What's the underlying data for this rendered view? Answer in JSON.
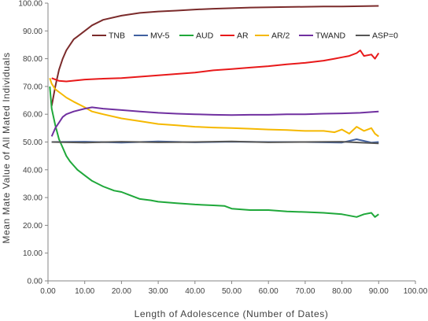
{
  "chart_data": {
    "type": "line",
    "title": "",
    "xlabel": "Length of Adolescence (Number of Dates)",
    "ylabel": "Mean Mate Value of All Mated Individuals",
    "xlim": [
      0,
      100
    ],
    "ylim": [
      0,
      100
    ],
    "x_ticks": [
      "0.00",
      "10.00",
      "20.00",
      "30.00",
      "40.00",
      "50.00",
      "60.00",
      "70.00",
      "80.00",
      "90.00",
      "100.00"
    ],
    "y_ticks": [
      "0.00",
      "10.00",
      "20.00",
      "30.00",
      "40.00",
      "50.00",
      "60.00",
      "70.00",
      "80.00",
      "90.00",
      "100.00"
    ],
    "grid": false,
    "legend": "top",
    "series": [
      {
        "name": "TNB",
        "color": "#7b2b2b",
        "points": [
          [
            1,
            63
          ],
          [
            2,
            70
          ],
          [
            3,
            76
          ],
          [
            4,
            80
          ],
          [
            5,
            83
          ],
          [
            6,
            85
          ],
          [
            7,
            87
          ],
          [
            8,
            88
          ],
          [
            10,
            90
          ],
          [
            12,
            92
          ],
          [
            15,
            94
          ],
          [
            20,
            95.5
          ],
          [
            25,
            96.5
          ],
          [
            30,
            97
          ],
          [
            35,
            97.3
          ],
          [
            40,
            97.7
          ],
          [
            45,
            98
          ],
          [
            50,
            98.2
          ],
          [
            55,
            98.4
          ],
          [
            60,
            98.5
          ],
          [
            65,
            98.6
          ],
          [
            70,
            98.7
          ],
          [
            75,
            98.8
          ],
          [
            80,
            98.8
          ],
          [
            85,
            98.9
          ],
          [
            90,
            99
          ]
        ]
      },
      {
        "name": "MV-5",
        "color": "#4060a0",
        "points": [
          [
            1,
            50
          ],
          [
            10,
            50.1
          ],
          [
            20,
            49.8
          ],
          [
            30,
            50.2
          ],
          [
            40,
            49.9
          ],
          [
            50,
            50.1
          ],
          [
            60,
            50
          ],
          [
            70,
            50
          ],
          [
            80,
            49.8
          ],
          [
            84,
            51
          ],
          [
            88,
            49.8
          ],
          [
            90,
            50
          ]
        ]
      },
      {
        "name": "AUD",
        "color": "#1fa83a",
        "points": [
          [
            0.5,
            70
          ],
          [
            1,
            62
          ],
          [
            2,
            56
          ],
          [
            3,
            51
          ],
          [
            4,
            48
          ],
          [
            5,
            45
          ],
          [
            6,
            43
          ],
          [
            7,
            41.5
          ],
          [
            8,
            40
          ],
          [
            9,
            39
          ],
          [
            10,
            38
          ],
          [
            12,
            36
          ],
          [
            15,
            34
          ],
          [
            18,
            32.5
          ],
          [
            20,
            32
          ],
          [
            22,
            31
          ],
          [
            25,
            29.5
          ],
          [
            28,
            29
          ],
          [
            30,
            28.5
          ],
          [
            35,
            28
          ],
          [
            40,
            27.5
          ],
          [
            45,
            27.2
          ],
          [
            48,
            27
          ],
          [
            50,
            26
          ],
          [
            55,
            25.5
          ],
          [
            60,
            25.5
          ],
          [
            65,
            25
          ],
          [
            70,
            24.8
          ],
          [
            75,
            24.5
          ],
          [
            80,
            24
          ],
          [
            84,
            23
          ],
          [
            86,
            24
          ],
          [
            88,
            24.5
          ],
          [
            89,
            23
          ],
          [
            90,
            24
          ]
        ]
      },
      {
        "name": "AR",
        "color": "#e8191a",
        "points": [
          [
            1,
            73
          ],
          [
            3,
            72
          ],
          [
            5,
            71.8
          ],
          [
            10,
            72.5
          ],
          [
            15,
            72.8
          ],
          [
            20,
            73
          ],
          [
            25,
            73.5
          ],
          [
            30,
            74
          ],
          [
            35,
            74.5
          ],
          [
            40,
            75
          ],
          [
            45,
            75.8
          ],
          [
            50,
            76.3
          ],
          [
            55,
            76.8
          ],
          [
            60,
            77.3
          ],
          [
            65,
            78
          ],
          [
            70,
            78.5
          ],
          [
            75,
            79.3
          ],
          [
            78,
            80
          ],
          [
            80,
            80.5
          ],
          [
            82,
            81
          ],
          [
            84,
            82
          ],
          [
            85,
            83
          ],
          [
            86,
            81
          ],
          [
            88,
            81.5
          ],
          [
            89,
            80
          ],
          [
            90,
            82
          ]
        ]
      },
      {
        "name": "AR/2",
        "color": "#f5b800",
        "points": [
          [
            0.5,
            73
          ],
          [
            1,
            71
          ],
          [
            2,
            69
          ],
          [
            3,
            68
          ],
          [
            4,
            67
          ],
          [
            5,
            66
          ],
          [
            7,
            64.5
          ],
          [
            10,
            62.5
          ],
          [
            12,
            61
          ],
          [
            15,
            60
          ],
          [
            20,
            58.5
          ],
          [
            25,
            57.5
          ],
          [
            30,
            56.5
          ],
          [
            35,
            56
          ],
          [
            40,
            55.5
          ],
          [
            45,
            55.2
          ],
          [
            50,
            55
          ],
          [
            55,
            54.8
          ],
          [
            60,
            54.5
          ],
          [
            65,
            54.3
          ],
          [
            70,
            54
          ],
          [
            75,
            54
          ],
          [
            78,
            53.5
          ],
          [
            80,
            54.5
          ],
          [
            82,
            53
          ],
          [
            84,
            55.5
          ],
          [
            86,
            54
          ],
          [
            88,
            55
          ],
          [
            89,
            53
          ],
          [
            90,
            52
          ]
        ]
      },
      {
        "name": "TWAND",
        "color": "#7030a0",
        "points": [
          [
            1,
            52
          ],
          [
            2,
            55
          ],
          [
            3,
            57
          ],
          [
            4,
            59
          ],
          [
            5,
            60
          ],
          [
            7,
            61
          ],
          [
            10,
            62
          ],
          [
            12,
            62.5
          ],
          [
            15,
            62
          ],
          [
            20,
            61.5
          ],
          [
            25,
            61
          ],
          [
            30,
            60.5
          ],
          [
            35,
            60.2
          ],
          [
            40,
            60
          ],
          [
            45,
            59.8
          ],
          [
            50,
            59.7
          ],
          [
            55,
            59.8
          ],
          [
            60,
            59.8
          ],
          [
            65,
            60
          ],
          [
            70,
            60
          ],
          [
            75,
            60.2
          ],
          [
            80,
            60.3
          ],
          [
            85,
            60.5
          ],
          [
            88,
            60.8
          ],
          [
            90,
            61
          ]
        ]
      },
      {
        "name": "ASP=0",
        "color": "#555555",
        "points": [
          [
            1,
            50
          ],
          [
            10,
            49.8
          ],
          [
            20,
            50.1
          ],
          [
            30,
            49.9
          ],
          [
            40,
            50
          ],
          [
            50,
            50.2
          ],
          [
            60,
            49.9
          ],
          [
            70,
            50
          ],
          [
            80,
            50.1
          ],
          [
            85,
            49.8
          ],
          [
            90,
            49.5
          ]
        ]
      }
    ]
  }
}
